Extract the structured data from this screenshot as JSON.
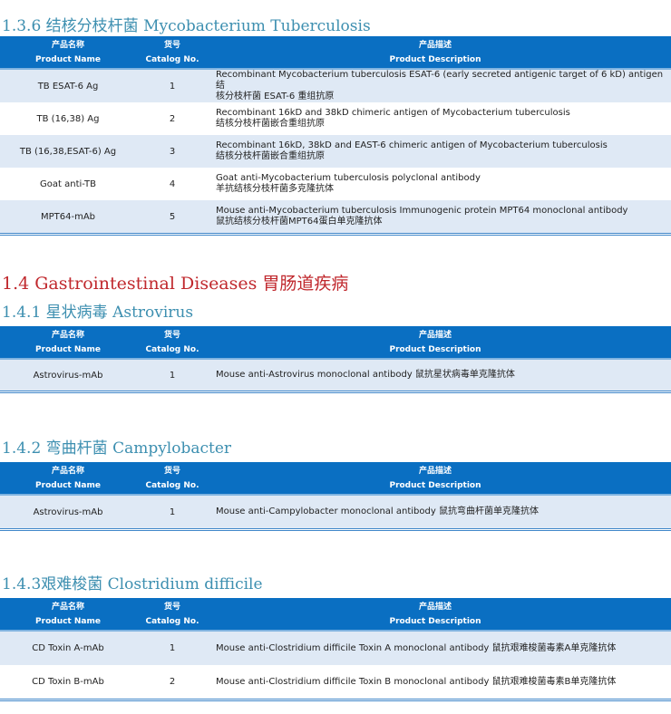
{
  "headers": {
    "name_cn": "产品名称",
    "name_en": "Product Name",
    "cat_cn": "货号",
    "cat_en": "Catalog No.",
    "desc_cn": "产品描述",
    "desc_en": "Product Description"
  },
  "sections": [
    {
      "title": "1.3.6 结核分枝杆菌 Mycobacterium  Tuberculosis",
      "rows": [
        {
          "name": "TB ESAT-6 Ag",
          "cat": "1",
          "desc1": "Recombinant Mycobacterium tuberculosis ESAT-6 (early secreted antigenic target of 6 kD) antigen 结",
          "desc2": "核分枝杆菌 ESAT-6 重组抗原"
        },
        {
          "name": "TB (16,38) Ag",
          "cat": "2",
          "desc1": "Recombinant 16kD and 38kD chimeric antigen of Mycobacterium tuberculosis",
          "desc2": "结核分枝杆菌嵌合重组抗原"
        },
        {
          "name": "TB (16,38,ESAT-6) Ag",
          "cat": "3",
          "desc1": "Recombinant 16kD,  38kD and EAST-6 chimeric  antigen of Mycobacterium  tuberculosis",
          "desc2": "结核分枝杆菌嵌合重组抗原"
        },
        {
          "name": "Goat anti-TB",
          "cat": "4",
          "desc1": "Goat anti-Mycobacterium tuberculosis polyclonal antibody",
          "desc2": "羊抗结核分枝杆菌多克隆抗体"
        },
        {
          "name": "MPT64-mAb",
          "cat": "5",
          "desc1": "Mouse anti-Mycobacterium tuberculosis Immunogenic protein MPT64 monoclonal antibody",
          "desc2": "鼠抗结核分枝杆菌MPT64蛋白单克隆抗体"
        }
      ]
    },
    {
      "title": "1.4.1 星状病毒 Astrovirus",
      "rows": [
        {
          "name": "Astrovirus-mAb",
          "cat": "1",
          "desc1": "Mouse anti-Astrovirus monoclonal antibody 鼠抗星状病毒单克隆抗体"
        }
      ]
    },
    {
      "title": "1.4.2 弯曲杆菌 Campylobacter",
      "rows": [
        {
          "name": "Astrovirus-mAb",
          "cat": "1",
          "desc1": "Mouse anti-Campylobacter monoclonal antibody 鼠抗弯曲杆菌单克隆抗体"
        }
      ]
    },
    {
      "title": "1.4.3艰难梭菌 Clostridium difficile",
      "rows": [
        {
          "name": "CD Toxin A-mAb",
          "cat": "1",
          "desc1": "Mouse anti-Clostridium difficile Toxin A monoclonal antibody 鼠抗艰难梭菌毒素A单克隆抗体"
        },
        {
          "name": "CD Toxin B-mAb",
          "cat": "2",
          "desc1": "Mouse anti-Clostridium difficile Toxin B monoclonal antibody 鼠抗艰难梭菌毒素B单克隆抗体"
        }
      ]
    }
  ],
  "chapter_title": "1.4 Gastrointestinal  Diseases 胃肠道疾病"
}
